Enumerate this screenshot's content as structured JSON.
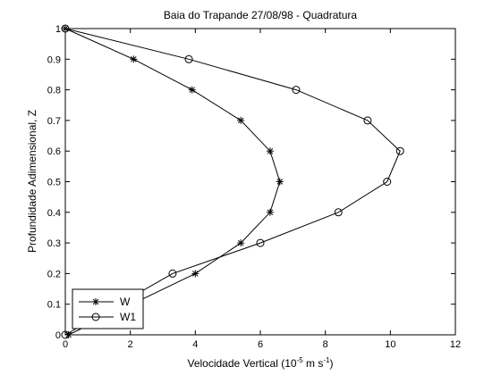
{
  "chart_data": {
    "type": "line",
    "title": "Baia do Trapande  27/08/98 - Quadratura",
    "xlabel": {
      "base": "Velocidade Vertical (10",
      "exp1": "-5",
      "mid": " m s",
      "exp2": "-1",
      "end": ")"
    },
    "ylabel": "Profundidade Adimensional, Z",
    "xlim": [
      0,
      12
    ],
    "ylim": [
      0,
      1
    ],
    "xticks": [
      0,
      2,
      4,
      6,
      8,
      10,
      12
    ],
    "yticks": [
      0,
      0.1,
      0.2,
      0.3,
      0.4,
      0.5,
      0.6,
      0.7,
      0.8,
      0.9,
      1
    ],
    "xtick_labels": [
      "0",
      "2",
      "4",
      "6",
      "8",
      "10",
      "12"
    ],
    "ytick_labels": [
      "0",
      "0.1",
      "0.2",
      "0.3",
      "0.4",
      "0.5",
      "0.6",
      "0.7",
      "0.8",
      "0.9",
      "1"
    ],
    "grid": false,
    "legend_position": "bottom-left",
    "line_color": "#000000",
    "series": [
      {
        "name": "W",
        "marker": "asterisk",
        "points": [
          {
            "x": 0.1,
            "y": 0.0
          },
          {
            "x": 4.0,
            "y": 0.2
          },
          {
            "x": 5.4,
            "y": 0.3
          },
          {
            "x": 6.3,
            "y": 0.4
          },
          {
            "x": 6.6,
            "y": 0.5
          },
          {
            "x": 6.3,
            "y": 0.6
          },
          {
            "x": 5.4,
            "y": 0.7
          },
          {
            "x": 3.9,
            "y": 0.8
          },
          {
            "x": 2.1,
            "y": 0.9
          },
          {
            "x": 0.0,
            "y": 1.0
          }
        ]
      },
      {
        "name": "W1",
        "marker": "circle",
        "points": [
          {
            "x": 0.0,
            "y": 0.0
          },
          {
            "x": 3.3,
            "y": 0.2
          },
          {
            "x": 6.0,
            "y": 0.3
          },
          {
            "x": 8.4,
            "y": 0.4
          },
          {
            "x": 9.9,
            "y": 0.5
          },
          {
            "x": 10.3,
            "y": 0.6
          },
          {
            "x": 9.3,
            "y": 0.7
          },
          {
            "x": 7.1,
            "y": 0.8
          },
          {
            "x": 3.8,
            "y": 0.9
          },
          {
            "x": 0.0,
            "y": 1.0
          }
        ]
      }
    ]
  }
}
